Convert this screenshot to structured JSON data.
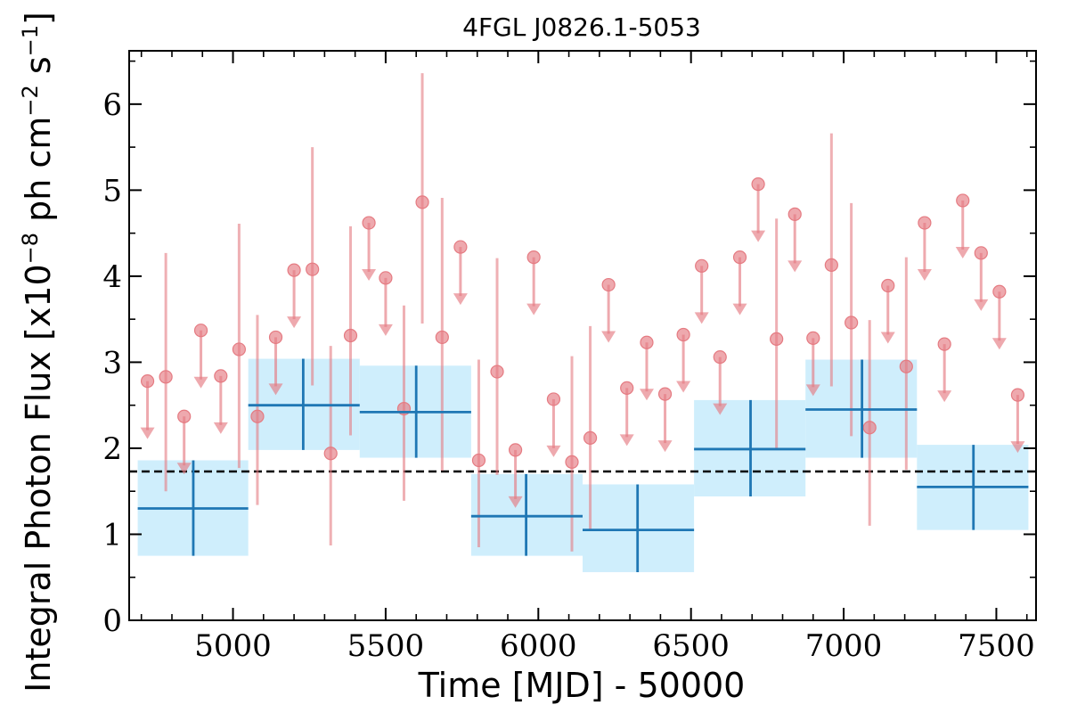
{
  "chart_data": {
    "type": "scatter",
    "title": "4FGL J0826.1-5053",
    "xlabel": "Time [MJD] - 50000",
    "ylabel": "Integral Photon Flux [x10",
    "ylabel_exp1": "−8",
    "ylabel_mid": " ph cm",
    "ylabel_exp2": "−2",
    "ylabel_mid2": " s",
    "ylabel_exp3": "−1",
    "ylabel_end": "]",
    "xlim": [
      4660,
      7630
    ],
    "ylim": [
      0,
      6.62
    ],
    "xticks": [
      5000,
      5500,
      6000,
      6500,
      7000,
      7500
    ],
    "xtick_labels": [
      "5000",
      "5500",
      "6000",
      "6500",
      "7000",
      "7500"
    ],
    "yticks": [
      0,
      1,
      2,
      3,
      4,
      5,
      6
    ],
    "ytick_labels": [
      "0",
      "1",
      "2",
      "3",
      "4",
      "5",
      "6"
    ],
    "mean_flux": 1.73,
    "colors": {
      "monthly": "#e57b82",
      "yearly": "#1f77b4",
      "yearly_band": "#cfeefc",
      "mean_line": "#000000"
    },
    "yearly_bins": [
      {
        "x": 4870,
        "x_lo": 4688,
        "x_hi": 5050,
        "y": 1.3,
        "y_lo": 0.75,
        "y_hi": 1.86
      },
      {
        "x": 5230,
        "x_lo": 5050,
        "x_hi": 5415,
        "y": 2.5,
        "y_lo": 1.98,
        "y_hi": 3.04
      },
      {
        "x": 5600,
        "x_lo": 5415,
        "x_hi": 5780,
        "y": 2.42,
        "y_lo": 1.89,
        "y_hi": 2.96
      },
      {
        "x": 5960,
        "x_lo": 5780,
        "x_hi": 6145,
        "y": 1.21,
        "y_lo": 0.75,
        "y_hi": 1.7
      },
      {
        "x": 6325,
        "x_lo": 6145,
        "x_hi": 6510,
        "y": 1.05,
        "y_lo": 0.56,
        "y_hi": 1.58
      },
      {
        "x": 6695,
        "x_lo": 6510,
        "x_hi": 6875,
        "y": 1.99,
        "y_lo": 1.44,
        "y_hi": 2.56
      },
      {
        "x": 7060,
        "x_lo": 6875,
        "x_hi": 7240,
        "y": 2.45,
        "y_lo": 1.89,
        "y_hi": 3.03
      },
      {
        "x": 7425,
        "x_lo": 7240,
        "x_hi": 7605,
        "y": 1.55,
        "y_lo": 1.05,
        "y_hi": 2.04
      }
    ],
    "monthly_points": [
      {
        "x": 4720,
        "y": 2.78,
        "upper_limit": true
      },
      {
        "x": 4780,
        "y": 2.83,
        "y_lo": 1.5,
        "y_hi": 4.27
      },
      {
        "x": 4840,
        "y": 2.37,
        "upper_limit": true
      },
      {
        "x": 4895,
        "y": 3.37,
        "upper_limit": true
      },
      {
        "x": 4960,
        "y": 2.84,
        "upper_limit": true
      },
      {
        "x": 5020,
        "y": 3.15,
        "y_lo": 1.77,
        "y_hi": 4.61
      },
      {
        "x": 5080,
        "y": 2.37,
        "y_lo": 1.34,
        "y_hi": 3.55
      },
      {
        "x": 5140,
        "y": 3.29,
        "upper_limit": true
      },
      {
        "x": 5200,
        "y": 4.07,
        "upper_limit": true
      },
      {
        "x": 5260,
        "y": 4.08,
        "y_lo": 2.73,
        "y_hi": 5.5
      },
      {
        "x": 5320,
        "y": 1.94,
        "y_lo": 0.87,
        "y_hi": 3.19
      },
      {
        "x": 5385,
        "y": 3.31,
        "y_lo": 2.15,
        "y_hi": 4.58
      },
      {
        "x": 5445,
        "y": 4.62,
        "upper_limit": true
      },
      {
        "x": 5500,
        "y": 3.98,
        "upper_limit": true
      },
      {
        "x": 5560,
        "y": 2.46,
        "y_lo": 1.39,
        "y_hi": 3.66
      },
      {
        "x": 5620,
        "y": 4.86,
        "y_lo": 3.45,
        "y_hi": 6.36
      },
      {
        "x": 5685,
        "y": 3.29,
        "y_lo": 1.74,
        "y_hi": 4.91
      },
      {
        "x": 5745,
        "y": 4.34,
        "upper_limit": true
      },
      {
        "x": 5805,
        "y": 1.86,
        "y_lo": 0.85,
        "y_hi": 3.03
      },
      {
        "x": 5865,
        "y": 2.89,
        "y_lo": 1.69,
        "y_hi": 4.21
      },
      {
        "x": 5925,
        "y": 1.98,
        "upper_limit": true
      },
      {
        "x": 5985,
        "y": 4.22,
        "upper_limit": true
      },
      {
        "x": 6050,
        "y": 2.57,
        "upper_limit": true
      },
      {
        "x": 6110,
        "y": 1.84,
        "y_lo": 0.8,
        "y_hi": 3.07
      },
      {
        "x": 6170,
        "y": 2.12,
        "y_lo": 1.05,
        "y_hi": 3.42
      },
      {
        "x": 6230,
        "y": 3.9,
        "upper_limit": true
      },
      {
        "x": 6290,
        "y": 2.7,
        "upper_limit": true
      },
      {
        "x": 6355,
        "y": 3.23,
        "upper_limit": true
      },
      {
        "x": 6415,
        "y": 2.63,
        "upper_limit": true
      },
      {
        "x": 6475,
        "y": 3.32,
        "upper_limit": true
      },
      {
        "x": 6535,
        "y": 4.12,
        "upper_limit": true
      },
      {
        "x": 6595,
        "y": 3.06,
        "upper_limit": true
      },
      {
        "x": 6660,
        "y": 4.22,
        "upper_limit": true
      },
      {
        "x": 6720,
        "y": 5.07,
        "upper_limit": true
      },
      {
        "x": 6780,
        "y": 3.27,
        "y_lo": 1.98,
        "y_hi": 4.67
      },
      {
        "x": 6840,
        "y": 4.72,
        "upper_limit": true
      },
      {
        "x": 6900,
        "y": 3.28,
        "upper_limit": true
      },
      {
        "x": 6960,
        "y": 4.13,
        "y_lo": 2.72,
        "y_hi": 5.66
      },
      {
        "x": 7025,
        "y": 3.46,
        "y_lo": 2.14,
        "y_hi": 4.85
      },
      {
        "x": 7085,
        "y": 2.24,
        "y_lo": 1.1,
        "y_hi": 3.49
      },
      {
        "x": 7145,
        "y": 3.89,
        "upper_limit": true
      },
      {
        "x": 7205,
        "y": 2.95,
        "y_lo": 1.75,
        "y_hi": 4.22
      },
      {
        "x": 7265,
        "y": 4.62,
        "upper_limit": true
      },
      {
        "x": 7330,
        "y": 3.21,
        "upper_limit": true
      },
      {
        "x": 7390,
        "y": 4.88,
        "upper_limit": true
      },
      {
        "x": 7450,
        "y": 4.27,
        "upper_limit": true
      },
      {
        "x": 7510,
        "y": 3.82,
        "upper_limit": true
      },
      {
        "x": 7570,
        "y": 2.62,
        "upper_limit": true
      }
    ]
  }
}
